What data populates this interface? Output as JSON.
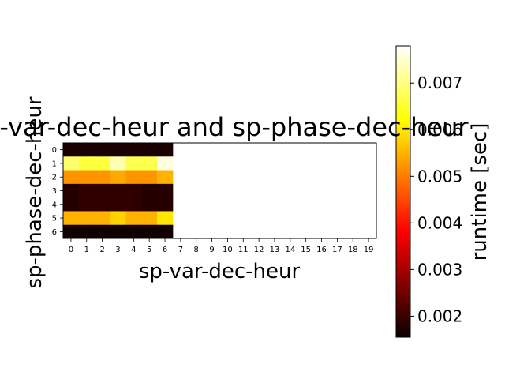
{
  "chart_data": {
    "type": "heatmap",
    "title": "sp-var-dec-heur and sp-phase-dec-heur",
    "xlabel": "sp-var-dec-heur",
    "ylabel": "sp-phase-dec-heur",
    "x_ticks": [
      "0",
      "1",
      "2",
      "3",
      "4",
      "5",
      "6",
      "7",
      "8",
      "9",
      "10",
      "11",
      "12",
      "13",
      "14",
      "15",
      "16",
      "17",
      "18",
      "19"
    ],
    "y_ticks": [
      "0",
      "1",
      "2",
      "3",
      "4",
      "5",
      "6"
    ],
    "x_range": [
      -0.5,
      19.5
    ],
    "y_range": [
      -0.5,
      6.5
    ],
    "rows_y": [
      0,
      1,
      2,
      3,
      4,
      5,
      6
    ],
    "cols_x": [
      0,
      1,
      2,
      3,
      4,
      5,
      6
    ],
    "values": [
      [
        0.0017,
        0.0017,
        0.0017,
        0.0017,
        0.0017,
        0.0017,
        0.0017
      ],
      [
        0.0069,
        0.0066,
        0.0066,
        0.0073,
        0.0067,
        0.0067,
        0.0076
      ],
      [
        0.0052,
        0.0052,
        0.0052,
        0.0054,
        0.0052,
        0.0052,
        0.0055
      ],
      [
        0.0018,
        0.0019,
        0.0019,
        0.0019,
        0.0019,
        0.0018,
        0.0018
      ],
      [
        0.0018,
        0.0019,
        0.0019,
        0.0019,
        0.0019,
        0.0018,
        0.0018
      ],
      [
        0.0055,
        0.0055,
        0.0055,
        0.0058,
        0.0055,
        0.0055,
        0.006
      ],
      [
        0.0016,
        0.0016,
        0.0016,
        0.0016,
        0.0016,
        0.0016,
        0.0016
      ]
    ],
    "colormap": "hot",
    "colorbar": {
      "label": "runtime [sec]",
      "range": [
        0.00155,
        0.0078
      ],
      "ticks": [
        0.002,
        0.003,
        0.004,
        0.005,
        0.006,
        0.007
      ],
      "tick_labels": [
        "0.002",
        "0.003",
        "0.004",
        "0.005",
        "0.006",
        "0.007"
      ]
    },
    "grid": false
  }
}
